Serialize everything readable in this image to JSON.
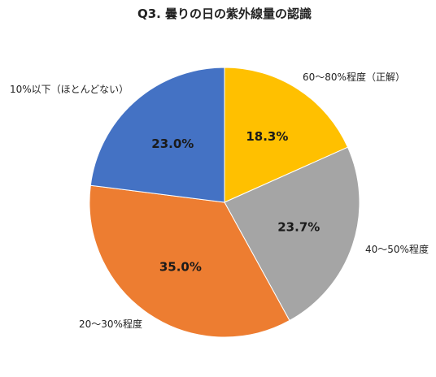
{
  "chart_data": {
    "type": "pie",
    "title": "Q3. 曇りの日の紫外線量の認識",
    "slices": [
      {
        "label": "60〜80%程度（正解）",
        "value": 18.3,
        "value_label": "18.3%",
        "color": "#FFC000"
      },
      {
        "label": "40〜50%程度",
        "value": 23.7,
        "value_label": "23.7%",
        "color": "#A5A5A5"
      },
      {
        "label": "20〜30%程度",
        "value": 35.0,
        "value_label": "35.0%",
        "color": "#ED7D31"
      },
      {
        "label": "10%以下（ほとんどない）",
        "value": 23.0,
        "value_label": "23.0%",
        "color": "#4472C4"
      }
    ],
    "start_angle": "12 o'clock",
    "direction": "clockwise",
    "legend": "none (labels outside slices)"
  }
}
